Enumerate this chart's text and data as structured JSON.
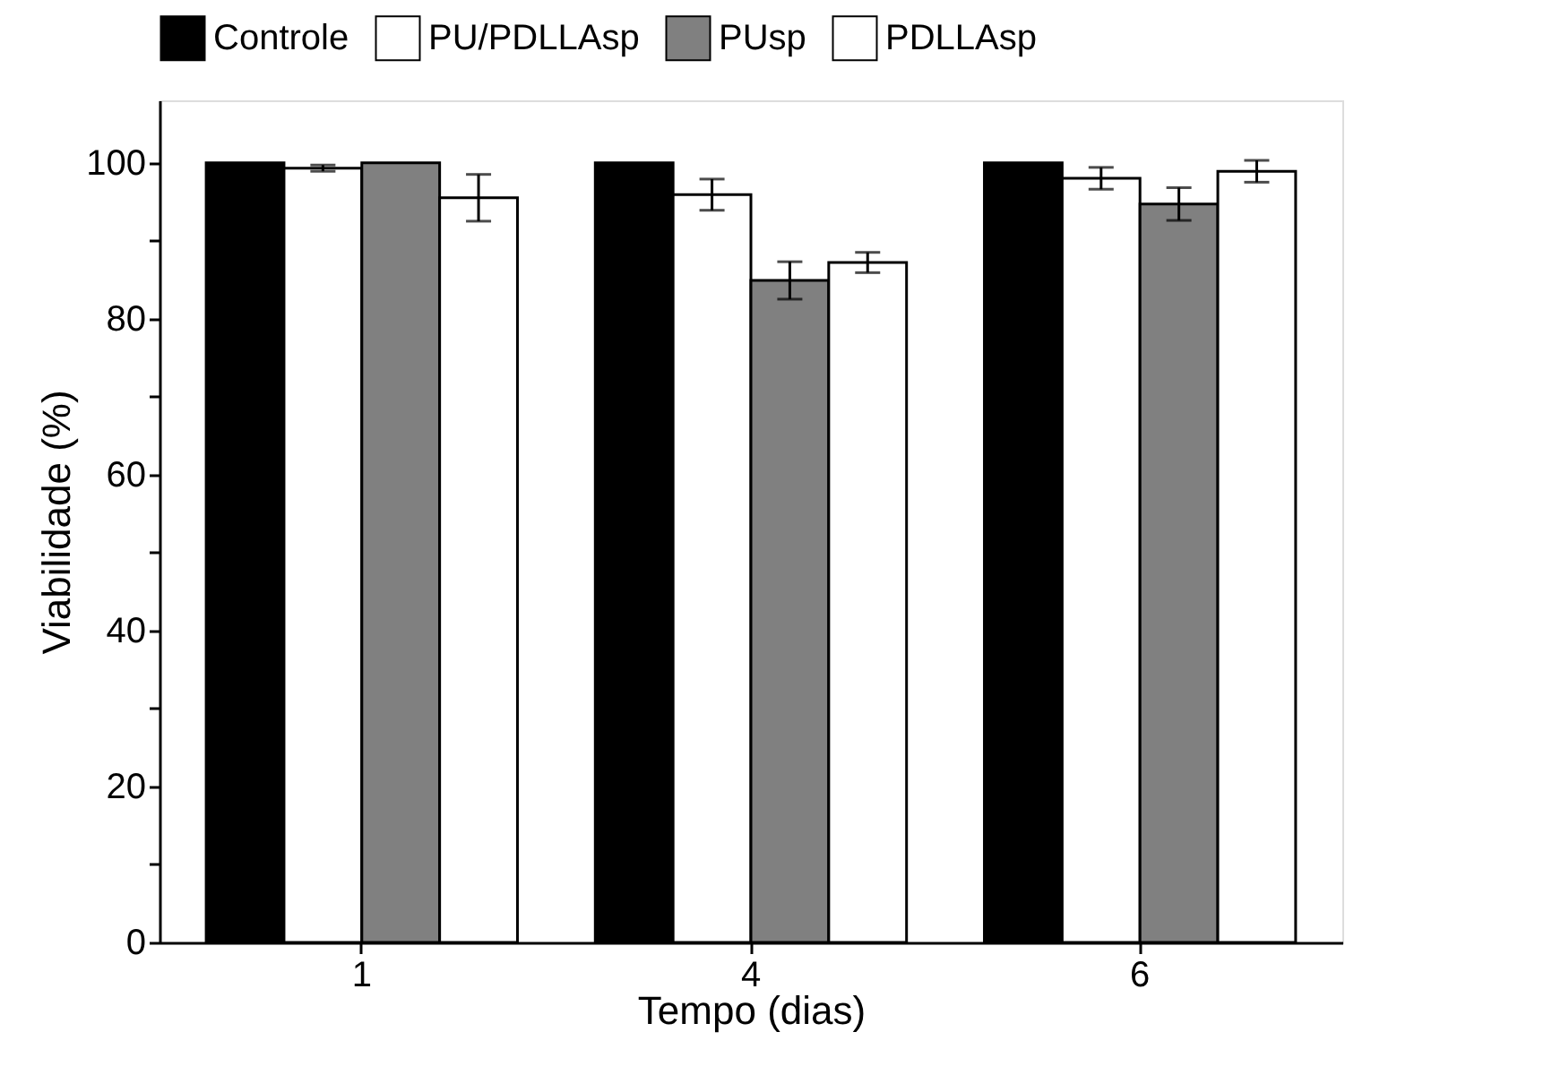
{
  "chart_data": {
    "type": "bar",
    "xlabel": "Tempo (dias)",
    "ylabel": "Viabilidade (%)",
    "categories": [
      "1",
      "4",
      "6"
    ],
    "series": [
      {
        "name": "Controle",
        "color": "#000000",
        "values": [
          100,
          100,
          100
        ],
        "errors": [
          null,
          null,
          null
        ]
      },
      {
        "name": "PU/PDLLAsp",
        "color": "#ffffff",
        "values": [
          99.3,
          95.9,
          98.0
        ],
        "errors": [
          0.4,
          2.0,
          1.4
        ]
      },
      {
        "name": "PUsp",
        "color": "#808080",
        "values": [
          100,
          84.9,
          94.7
        ],
        "errors": [
          null,
          2.4,
          2.1
        ]
      },
      {
        "name": "PDLLAsp",
        "color": "#ffffff",
        "values": [
          95.5,
          87.2,
          98.9
        ],
        "errors": [
          3.0,
          1.3,
          1.4
        ]
      }
    ],
    "ylim": [
      0,
      108
    ],
    "yticks": [
      0,
      {
        "value": 10,
        "label": null
      },
      20,
      {
        "value": 30,
        "label": null
      },
      40,
      {
        "value": 50,
        "label": null
      },
      60,
      {
        "value": 70,
        "label": null
      },
      80,
      {
        "value": 90,
        "label": null
      },
      100
    ],
    "grid": false,
    "legend": "top"
  }
}
